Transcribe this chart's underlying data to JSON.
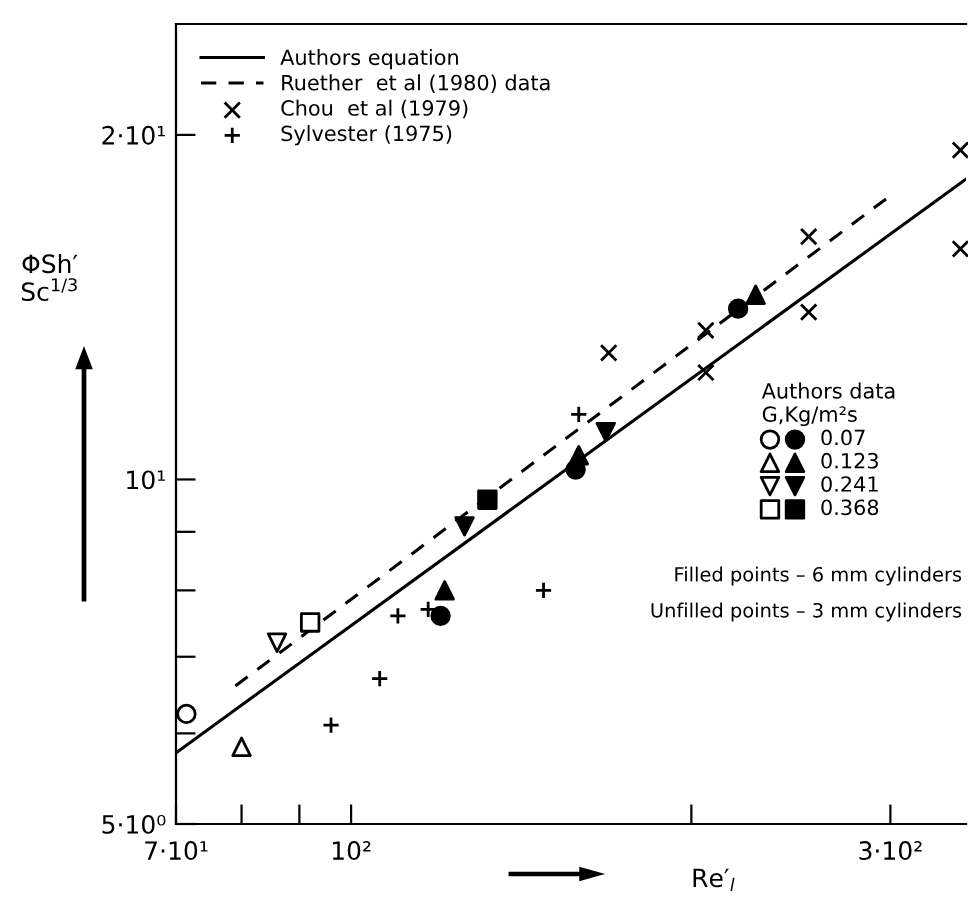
{
  "chart_data": {
    "type": "scatter",
    "log": "xy",
    "xlabel": "Re′$_{l}$",
    "ylabel": "ΦSh′\nSc$^{1/3}$",
    "legend_title": "Authors data\nG,Kg/m²s",
    "annotations": [
      "Filled points – 6 mm cylinders",
      "Unfilled points – 3 mm cylinders"
    ],
    "xlim": [
      70,
      350
    ],
    "ylim": [
      5,
      25
    ],
    "xticks": [
      {
        "value": 70,
        "label": "7·10¹"
      },
      {
        "value": 80,
        "label": null
      },
      {
        "value": 90,
        "label": null
      },
      {
        "value": 100,
        "label": "10²"
      },
      {
        "value": 200,
        "label": null
      },
      {
        "value": 300,
        "label": "3·10²"
      }
    ],
    "yticks": [
      {
        "value": 5,
        "label": "5·10⁰"
      },
      {
        "value": 6,
        "label": null
      },
      {
        "value": 7,
        "label": null
      },
      {
        "value": 8,
        "label": null
      },
      {
        "value": 9,
        "label": null
      },
      {
        "value": 10,
        "label": "10¹"
      },
      {
        "value": 20,
        "label": "2·10¹"
      }
    ],
    "grid": false,
    "legend": "top left",
    "series": [
      {
        "name": "Authors equation",
        "type": "line",
        "line_style": "solid",
        "marker": "none",
        "color": "#000000",
        "x": [
          70,
          350
        ],
        "values": [
          5.77,
          18.3
        ]
      },
      {
        "name": "Ruether  et al (1980) data",
        "type": "line",
        "line_style": "dashed",
        "marker": "none",
        "color": "#000000",
        "x": [
          79,
          300
        ],
        "values": [
          6.6,
          17.7
        ]
      },
      {
        "name": "Chou  et al (1979)",
        "marker": "cross",
        "color": "#000000",
        "x": [
          169,
          206,
          206,
          254,
          254,
          346,
          346
        ],
        "values": [
          12.9,
          13.5,
          12.4,
          14.0,
          16.3,
          19.4,
          15.9
        ]
      },
      {
        "name": "Sylvester (1975)",
        "marker": "plus",
        "color": "#000000",
        "x": [
          159,
          148,
          110,
          117,
          106,
          96
        ],
        "values": [
          11.4,
          8.0,
          7.6,
          7.7,
          6.7,
          6.1
        ]
      },
      {
        "marker": "circle",
        "color": "#ffffff",
        "x": [
          71.5
        ],
        "values": [
          6.24
        ]
      },
      {
        "name": "0.07",
        "marker": "circle",
        "color": "#000000",
        "x": [
          120,
          158,
          220
        ],
        "values": [
          7.6,
          10.2,
          14.1
        ]
      },
      {
        "marker": "triangle",
        "color": "#ffffff",
        "x": [
          80
        ],
        "values": [
          5.84
        ]
      },
      {
        "name": "0.123",
        "marker": "triangle",
        "color": "#000000",
        "x": [
          121,
          159,
          228
        ],
        "values": [
          8.0,
          10.5,
          14.5
        ]
      },
      {
        "marker": "triangle_down",
        "color": "#ffffff",
        "x": [
          86
        ],
        "values": [
          7.2
        ]
      },
      {
        "name": "0.241",
        "marker": "triangle_down",
        "color": "#000000",
        "x": [
          126,
          168
        ],
        "values": [
          9.1,
          11.0
        ]
      },
      {
        "marker": "square",
        "color": "#ffffff",
        "x": [
          92
        ],
        "values": [
          7.5
        ]
      },
      {
        "name": "0.368",
        "marker": "square",
        "color": "#000000",
        "x": [
          132
        ],
        "values": [
          9.6
        ]
      }
    ]
  }
}
